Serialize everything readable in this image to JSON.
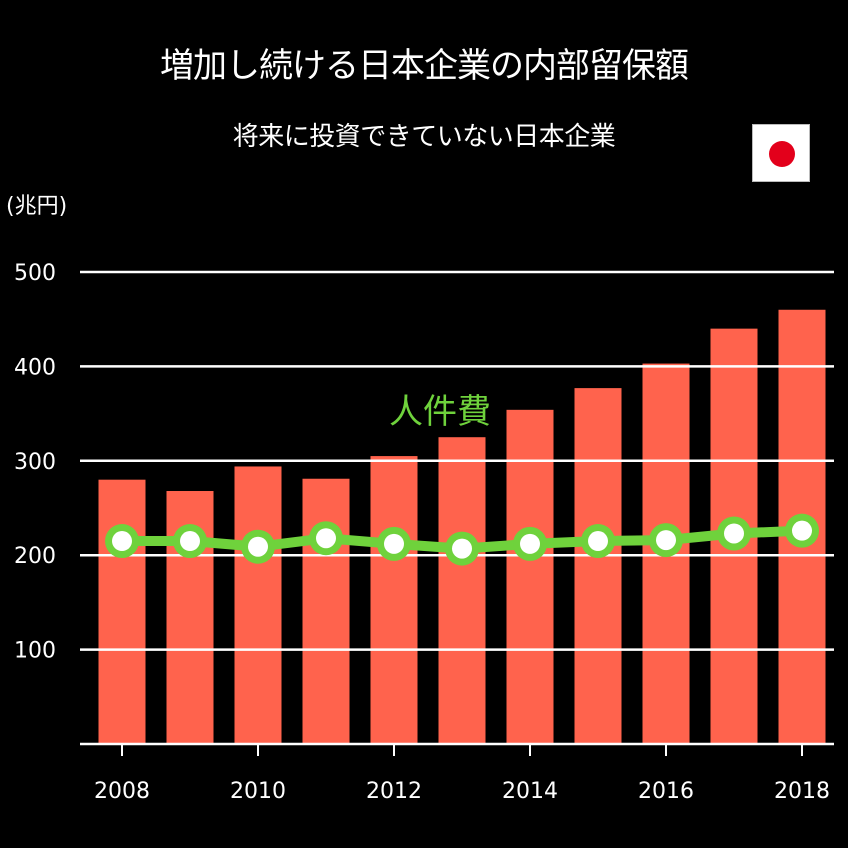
{
  "title": "増加し続ける日本企業の内部留保額",
  "subtitle": "将来に投資できていない日本企業",
  "unit_label": "(兆円)",
  "flag_icon": "japan-flag-icon",
  "colors": {
    "bar": "#ff634d",
    "line": "#6fd23c",
    "marker_fill": "#ffffff",
    "grid": "#ffffff",
    "background": "#000000"
  },
  "chart_data": {
    "type": "bar",
    "title": "増加し続ける日本企業の内部留保額",
    "ylabel": "(兆円)",
    "ylim": [
      0,
      500
    ],
    "yticks": [
      "100",
      "200",
      "300",
      "400",
      "500"
    ],
    "categories": [
      "2008",
      "2009",
      "2010",
      "2011",
      "2012",
      "2013",
      "2014",
      "2015",
      "2016",
      "2017",
      "2018"
    ],
    "xtick_labels": [
      "2008",
      "",
      "2010",
      "",
      "2012",
      "",
      "2014",
      "",
      "2016",
      "",
      "2018"
    ],
    "series": [
      {
        "values": [
          280,
          268,
          294,
          281,
          305,
          325,
          354,
          377,
          403,
          440,
          460
        ]
      },
      {
        "name": "人件費",
        "values": [
          215,
          215,
          209,
          218,
          212,
          207,
          212,
          215,
          216,
          223,
          226
        ]
      }
    ]
  }
}
